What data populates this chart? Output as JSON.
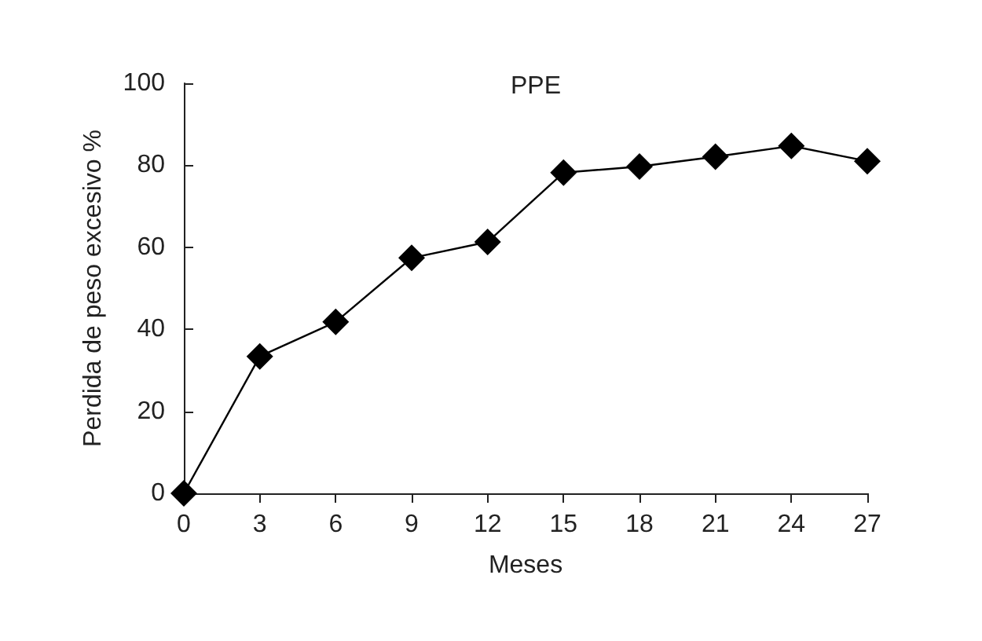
{
  "chart_data": {
    "type": "line",
    "title": "PPE",
    "xlabel": "Meses",
    "ylabel": "Perdida de peso excesivo %",
    "x": [
      0,
      3,
      6,
      9,
      12,
      15,
      18,
      21,
      24,
      27
    ],
    "series": [
      {
        "color": "#000000",
        "values": [
          0,
          33.4,
          41.8,
          57.4,
          61.3,
          78.2,
          79.7,
          82.1,
          84.7,
          81.0
        ]
      }
    ],
    "xlim": [
      0,
      27
    ],
    "xticks": [
      0,
      3,
      6,
      9,
      12,
      15,
      18,
      21,
      24,
      27
    ],
    "ylim": [
      0,
      100
    ],
    "yticks": [
      0,
      20,
      40,
      60,
      80,
      100
    ],
    "marker": "diamond",
    "line_style": "solid"
  }
}
